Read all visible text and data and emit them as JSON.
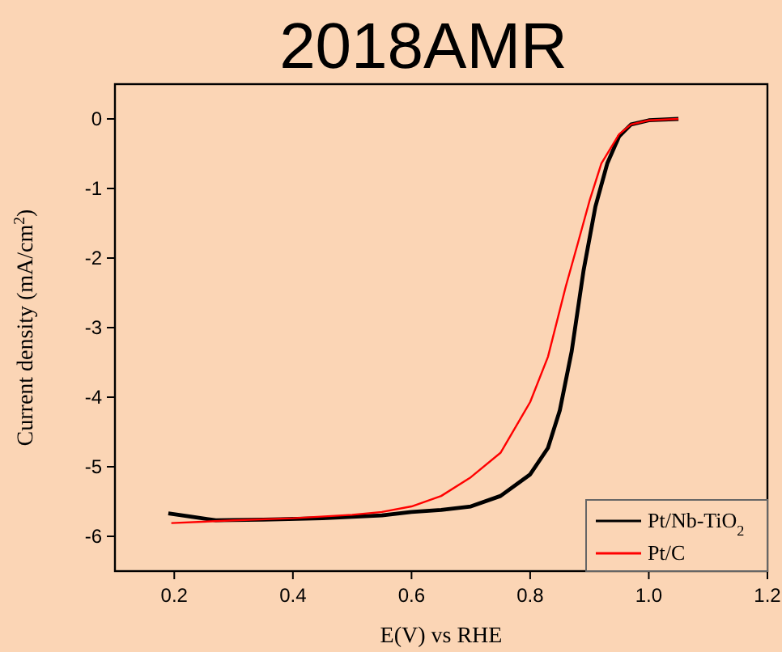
{
  "chart_data": {
    "type": "line",
    "title": "2018AMR",
    "xlabel": "E(V) vs RHE",
    "ylabel": "Current density (mA/cm$^{2}$)",
    "xlim": [
      0.1,
      1.2
    ],
    "xticks": [
      0.2,
      0.4,
      0.6,
      0.8,
      {
        "value": 1.0,
        "label": "1.0"
      },
      1.2
    ],
    "ylim": [
      -6.5,
      0.5
    ],
    "yticks": [
      -6,
      -5,
      -4,
      -3,
      -2,
      -1,
      0
    ],
    "legend": "bottom right",
    "grid": false,
    "marker": "none",
    "line_style": "solid",
    "series": [
      {
        "name": "Pt/Nb-TiO$_{2}$",
        "color": "#000000",
        "x": [
          0.19,
          0.23,
          0.27,
          0.35,
          0.45,
          0.55,
          0.6,
          0.65,
          0.7,
          0.75,
          0.8,
          0.83,
          0.85,
          0.87,
          0.89,
          0.91,
          0.93,
          0.95,
          0.97,
          1.0,
          1.05
        ],
        "values": [
          -5.67,
          -5.72,
          -5.77,
          -5.76,
          -5.74,
          -5.7,
          -5.65,
          -5.62,
          -5.57,
          -5.42,
          -5.11,
          -4.73,
          -4.19,
          -3.34,
          -2.18,
          -1.26,
          -0.64,
          -0.25,
          -0.08,
          -0.02,
          0
        ]
      },
      {
        "name": "Pt/C",
        "color": "#ff0000",
        "x": [
          0.195,
          0.3,
          0.4,
          0.5,
          0.55,
          0.6,
          0.65,
          0.7,
          0.75,
          0.8,
          0.83,
          0.86,
          0.88,
          0.9,
          0.92,
          0.95,
          0.97,
          1.0,
          1.05
        ],
        "values": [
          -5.81,
          -5.77,
          -5.74,
          -5.69,
          -5.65,
          -5.57,
          -5.42,
          -5.15,
          -4.8,
          -4.07,
          -3.42,
          -2.41,
          -1.8,
          -1.18,
          -0.64,
          -0.22,
          -0.08,
          -0.02,
          0
        ]
      }
    ]
  }
}
